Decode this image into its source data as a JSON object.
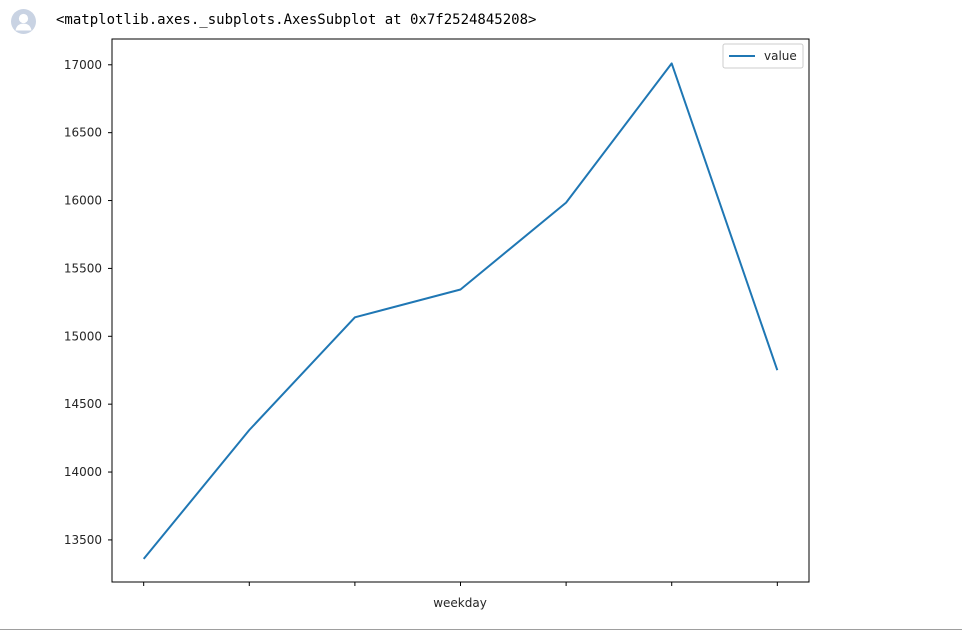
{
  "cell": {
    "output_text": "<matplotlib.axes._subplots.AxesSubplot at 0x7f2524845208>",
    "avatar_icon": "user-avatar-icon"
  },
  "chart_data": {
    "type": "line",
    "title": "",
    "xlabel": "weekday",
    "ylabel": "",
    "x": [
      0,
      1,
      2,
      3,
      4,
      5,
      6
    ],
    "x_tick_labels": [
      "",
      "",
      "",
      "",
      "",
      "",
      ""
    ],
    "series": [
      {
        "name": "value",
        "color": "#1f77b4",
        "values": [
          13360,
          14310,
          15140,
          15345,
          15985,
          17010,
          14750
        ]
      }
    ],
    "yticks": [
      13500,
      14000,
      14500,
      15000,
      15500,
      16000,
      16500,
      17000
    ],
    "ylim": [
      13190,
      17190
    ],
    "xlim": [
      -0.3,
      6.3
    ],
    "legend": {
      "placement": "upper-right",
      "entries": [
        "value"
      ]
    },
    "grid": false
  }
}
